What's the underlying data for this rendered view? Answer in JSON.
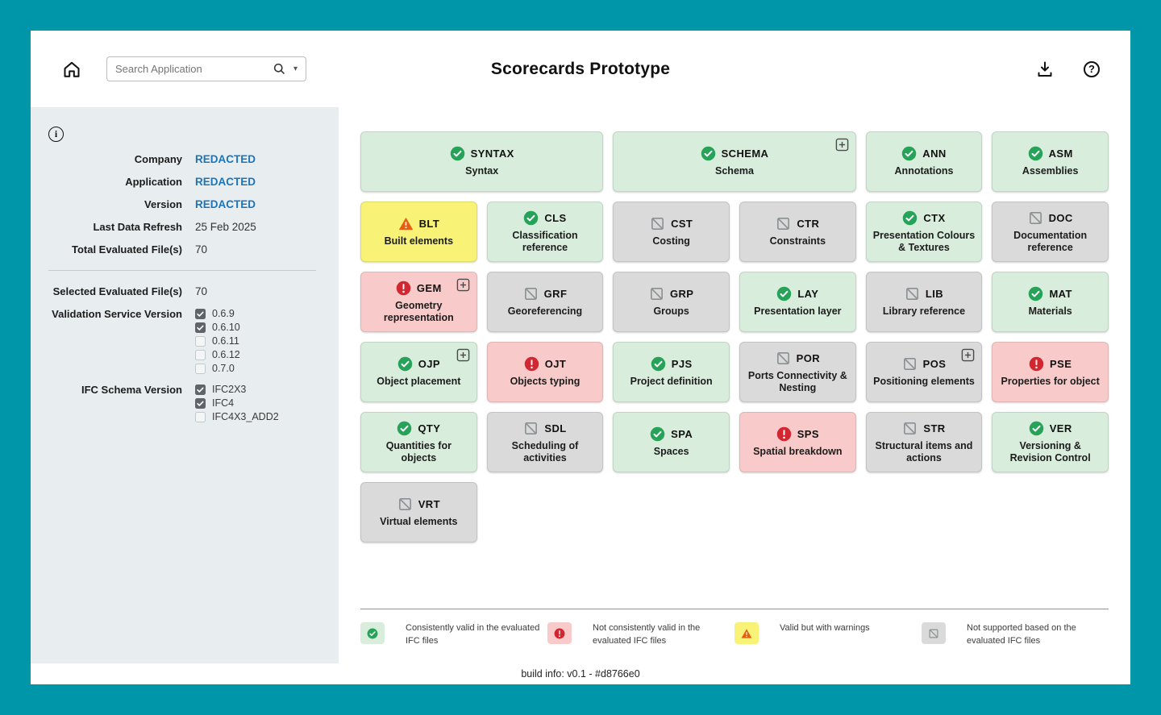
{
  "colors": {
    "frame_accent": "#0096a9",
    "sidebar_bg": "#e8edef",
    "link_blue": "#1b75bb",
    "valid_bg": "#d8eddc",
    "valid_icon": "#27a359",
    "invalid_bg": "#f9caca",
    "invalid_icon": "#d22630",
    "warning_bg": "#f8f377",
    "warning_icon": "#e55e12",
    "unsupported_bg": "#dadada",
    "unsupported_icon": "#8a9091"
  },
  "header": {
    "title": "Scorecards Prototype",
    "search_placeholder": "Search Application",
    "help_glyph": "?",
    "info_glyph": "i"
  },
  "sidebar": {
    "info_rows": [
      {
        "label": "Company",
        "value": "REDACTED",
        "link": true
      },
      {
        "label": "Application",
        "value": "REDACTED",
        "link": true
      },
      {
        "label": "Version",
        "value": "REDACTED",
        "link": true
      },
      {
        "label": "Last Data Refresh",
        "value": "25 Feb 2025",
        "link": false
      },
      {
        "label": "Total Evaluated File(s)",
        "value": "70",
        "link": false
      }
    ],
    "selected_files": {
      "label": "Selected Evaluated File(s)",
      "value": "70"
    },
    "filters": [
      {
        "label": "Validation Service Version",
        "id": "validation-service-version",
        "options": [
          {
            "label": "0.6.9",
            "checked": true
          },
          {
            "label": "0.6.10",
            "checked": true
          },
          {
            "label": "0.6.11",
            "checked": false
          },
          {
            "label": "0.6.12",
            "checked": false
          },
          {
            "label": "0.7.0",
            "checked": false
          }
        ]
      },
      {
        "label": "IFC Schema Version",
        "id": "ifc-schema-version",
        "options": [
          {
            "label": "IFC2X3",
            "checked": true
          },
          {
            "label": "IFC4",
            "checked": true
          },
          {
            "label": "IFC4X3_ADD2",
            "checked": false
          }
        ]
      }
    ]
  },
  "cards": [
    {
      "code": "SYNTAX",
      "name": "Syntax",
      "status": "valid",
      "wide": true,
      "expandable": false
    },
    {
      "code": "SCHEMA",
      "name": "Schema",
      "status": "valid",
      "wide": true,
      "expandable": true
    },
    {
      "code": "ANN",
      "name": "Annotations",
      "status": "valid",
      "wide": false,
      "expandable": false
    },
    {
      "code": "ASM",
      "name": "Assemblies",
      "status": "valid",
      "wide": false,
      "expandable": false
    },
    {
      "code": "BLT",
      "name": "Built elements",
      "status": "warning",
      "wide": false,
      "expandable": false
    },
    {
      "code": "CLS",
      "name": "Classification reference",
      "status": "valid",
      "wide": false,
      "expandable": false
    },
    {
      "code": "CST",
      "name": "Costing",
      "status": "unsupported",
      "wide": false,
      "expandable": false
    },
    {
      "code": "CTR",
      "name": "Constraints",
      "status": "unsupported",
      "wide": false,
      "expandable": false
    },
    {
      "code": "CTX",
      "name": "Presentation Colours & Textures",
      "status": "valid",
      "wide": false,
      "expandable": false
    },
    {
      "code": "DOC",
      "name": "Documentation reference",
      "status": "unsupported",
      "wide": false,
      "expandable": false
    },
    {
      "code": "GEM",
      "name": "Geometry representation",
      "status": "invalid",
      "wide": false,
      "expandable": true
    },
    {
      "code": "GRF",
      "name": "Georeferencing",
      "status": "unsupported",
      "wide": false,
      "expandable": false
    },
    {
      "code": "GRP",
      "name": "Groups",
      "status": "unsupported",
      "wide": false,
      "expandable": false
    },
    {
      "code": "LAY",
      "name": "Presentation layer",
      "status": "valid",
      "wide": false,
      "expandable": false
    },
    {
      "code": "LIB",
      "name": "Library reference",
      "status": "unsupported",
      "wide": false,
      "expandable": false
    },
    {
      "code": "MAT",
      "name": "Materials",
      "status": "valid",
      "wide": false,
      "expandable": false
    },
    {
      "code": "OJP",
      "name": "Object placement",
      "status": "valid",
      "wide": false,
      "expandable": true
    },
    {
      "code": "OJT",
      "name": "Objects typing",
      "status": "invalid",
      "wide": false,
      "expandable": false
    },
    {
      "code": "PJS",
      "name": "Project definition",
      "status": "valid",
      "wide": false,
      "expandable": false
    },
    {
      "code": "POR",
      "name": "Ports Connectivity & Nesting",
      "status": "unsupported",
      "wide": false,
      "expandable": false
    },
    {
      "code": "POS",
      "name": "Positioning elements",
      "status": "unsupported",
      "wide": false,
      "expandable": true
    },
    {
      "code": "PSE",
      "name": "Properties for object",
      "status": "invalid",
      "wide": false,
      "expandable": false
    },
    {
      "code": "QTY",
      "name": "Quantities for objects",
      "status": "valid",
      "wide": false,
      "expandable": false
    },
    {
      "code": "SDL",
      "name": "Scheduling of activities",
      "status": "unsupported",
      "wide": false,
      "expandable": false
    },
    {
      "code": "SPA",
      "name": "Spaces",
      "status": "valid",
      "wide": false,
      "expandable": false
    },
    {
      "code": "SPS",
      "name": "Spatial breakdown",
      "status": "invalid",
      "wide": false,
      "expandable": false
    },
    {
      "code": "STR",
      "name": "Structural items and actions",
      "status": "unsupported",
      "wide": false,
      "expandable": false
    },
    {
      "code": "VER",
      "name": "Versioning & Revision Control",
      "status": "valid",
      "wide": false,
      "expandable": false
    },
    {
      "code": "VRT",
      "name": "Virtual elements",
      "status": "unsupported",
      "wide": false,
      "expandable": false
    }
  ],
  "legend": [
    {
      "status": "valid",
      "text": "Consistently valid in the evaluated IFC files"
    },
    {
      "status": "invalid",
      "text": "Not consistently valid in the evaluated IFC files"
    },
    {
      "status": "warning",
      "text": "Valid but with warnings"
    },
    {
      "status": "unsupported",
      "text": "Not supported based on the evaluated IFC files"
    }
  ],
  "footer": {
    "build_info": "build info: v0.1 - #d8766e0"
  },
  "icon_names": [
    "home-icon",
    "search-icon",
    "chevron-down-icon",
    "download-icon",
    "help-icon",
    "info-icon",
    "check-circle-icon",
    "error-circle-icon",
    "warning-triangle-icon",
    "not-supported-icon",
    "expand-plus-icon",
    "checkbox-checked",
    "checkbox-unchecked"
  ]
}
